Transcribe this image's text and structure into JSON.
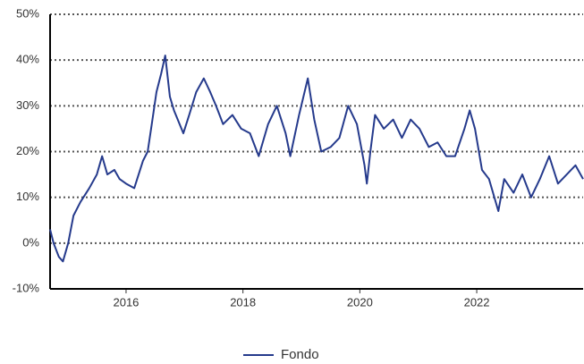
{
  "chart_data": {
    "type": "line",
    "xlim": [
      2014.7,
      2023.82
    ],
    "xticks": [
      2016,
      2018,
      2020,
      2022
    ],
    "ylim": [
      -10,
      50
    ],
    "yticks": [
      {
        "value": -10,
        "label": "-10%"
      },
      {
        "value": 0,
        "label": "0%"
      },
      {
        "value": 10,
        "label": "10%"
      },
      {
        "value": 20,
        "label": "20%"
      },
      {
        "value": 30,
        "label": "30%"
      },
      {
        "value": 40,
        "label": "40%"
      },
      {
        "value": 50,
        "label": "50%"
      }
    ],
    "grid": true,
    "legend": "bottom",
    "series": [
      {
        "name": "Fondo",
        "color": "#253a8c",
        "x": [
          2014.7,
          2014.76,
          2014.85,
          2014.92,
          2015.01,
          2015.1,
          2015.22,
          2015.37,
          2015.5,
          2015.59,
          2015.68,
          2015.8,
          2015.89,
          2016.0,
          2016.14,
          2016.29,
          2016.37,
          2016.44,
          2016.52,
          2016.6,
          2016.67,
          2016.75,
          2016.82,
          2016.98,
          2017.08,
          2017.2,
          2017.33,
          2017.44,
          2017.54,
          2017.66,
          2017.82,
          2017.97,
          2018.12,
          2018.27,
          2018.43,
          2018.58,
          2018.73,
          2018.81,
          2018.96,
          2019.11,
          2019.22,
          2019.34,
          2019.5,
          2019.65,
          2019.8,
          2019.95,
          2020.08,
          2020.12,
          2020.18,
          2020.26,
          2020.41,
          2020.57,
          2020.72,
          2020.87,
          2021.02,
          2021.18,
          2021.33,
          2021.48,
          2021.63,
          2021.79,
          2021.88,
          2021.97,
          2022.09,
          2022.21,
          2022.37,
          2022.47,
          2022.63,
          2022.78,
          2022.93,
          2023.08,
          2023.24,
          2023.39,
          2023.54,
          2023.69,
          2023.82
        ],
        "values": [
          3,
          0,
          -3,
          -4,
          0,
          6,
          9,
          12,
          15,
          19,
          15,
          16,
          14,
          13,
          12,
          18,
          20,
          26,
          33,
          37,
          41,
          32,
          29,
          24,
          28,
          33,
          36,
          33,
          30,
          26,
          28,
          25,
          24,
          19,
          26,
          30,
          24,
          19,
          28,
          36,
          27,
          20,
          21,
          23,
          30,
          26,
          17,
          13,
          20,
          28,
          25,
          27,
          23,
          27,
          25,
          21,
          22,
          19,
          19,
          25,
          29,
          25,
          16,
          14,
          7,
          14,
          11,
          15,
          10,
          14,
          19,
          13,
          15,
          17,
          14
        ]
      }
    ]
  }
}
